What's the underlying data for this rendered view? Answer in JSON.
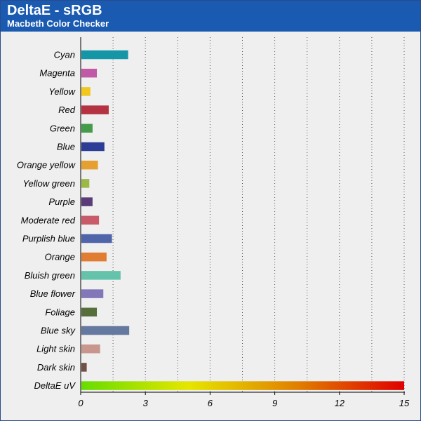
{
  "header": {
    "title": "DeltaE - sRGB",
    "subtitle": "Macbeth Color Checker"
  },
  "chart_data": {
    "type": "bar",
    "orientation": "horizontal",
    "title": "DeltaE - sRGB",
    "subtitle": "Macbeth Color Checker",
    "xlabel": "",
    "ylabel": "",
    "xlim": [
      0,
      15
    ],
    "xticks": [
      0,
      3,
      6,
      9,
      12,
      15
    ],
    "grid": "vertical-dotted",
    "categories": [
      "Cyan",
      "Magenta",
      "Yellow",
      "Red",
      "Green",
      "Blue",
      "Orange yellow",
      "Yellow green",
      "Purple",
      "Moderate red",
      "Purplish blue",
      "Orange",
      "Bluish green",
      "Blue flower",
      "Foliage",
      "Blue sky",
      "Light skin",
      "Dark skin",
      "DeltaE uV"
    ],
    "values": [
      2.2,
      0.75,
      0.45,
      1.3,
      0.55,
      1.1,
      0.8,
      0.4,
      0.55,
      0.85,
      1.45,
      1.2,
      1.85,
      1.05,
      0.75,
      2.25,
      0.9,
      0.28,
      15
    ],
    "colors": [
      "#1596a6",
      "#c15aa6",
      "#f0c81e",
      "#b43241",
      "#469b4b",
      "#2d3c96",
      "#e6a032",
      "#9bb946",
      "#5a3c78",
      "#c85a69",
      "#5064aa",
      "#e07d32",
      "#64c3aa",
      "#8278b9",
      "#556e3c",
      "#6478a0",
      "#c8968c",
      "#735046",
      "gradient"
    ],
    "gradient_colors": [
      "#66dd00",
      "#e6e600",
      "#e08000",
      "#e00000"
    ]
  }
}
